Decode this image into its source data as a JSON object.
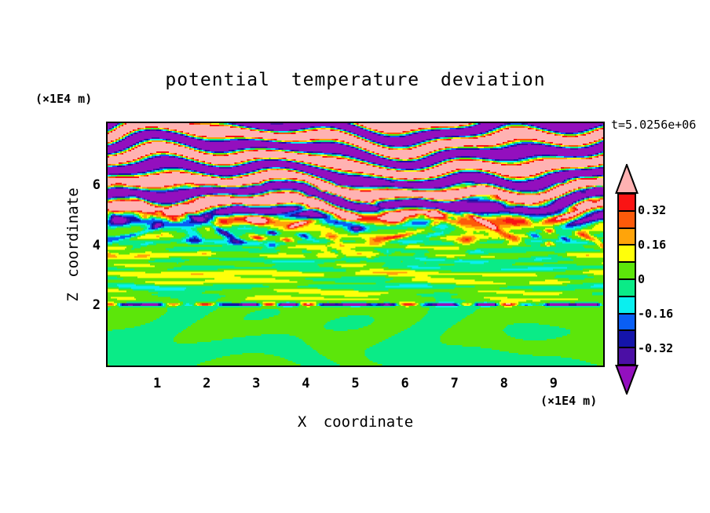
{
  "figure": {
    "background": "#FFFFFF",
    "frame_color": "#000000",
    "text_color": "#000000"
  },
  "chart_data": {
    "type": "heatmap",
    "title": "potential temperature deviation",
    "xlabel": "X coordinate",
    "ylabel": "Z coordinate",
    "x_unit_label": "(×1E4 m)",
    "z_unit_label": "(×1E4 m)",
    "time_annotation": "t=5.0256e+06",
    "x_range": [
      0,
      10
    ],
    "z_range": [
      0,
      8.06
    ],
    "x_major_ticks": [
      1,
      2,
      3,
      4,
      5,
      6,
      7,
      8,
      9
    ],
    "x_minor_step": 0.2,
    "z_major_ticks": [
      2,
      4,
      6,
      8
    ],
    "z_minor_step": 0.4,
    "z_labeled_ticks": [
      2,
      4,
      6
    ],
    "grid": false,
    "legend_position": "right-colorbar",
    "colorbar": {
      "max_abs_level": 0.4,
      "level_step": 0.08,
      "labels": [
        "0.32",
        "0.16",
        "0",
        "-0.16",
        "-0.32"
      ],
      "segment_colors_top_to_bottom": [
        "#FA1414",
        "#FC5A0A",
        "#FFA40A",
        "#FFFF0A",
        "#5CE60A",
        "#0AEB87",
        "#0AEFEF",
        "#0A5FF5",
        "#1414AA",
        "#4B0FA5"
      ],
      "segment_names_top_to_bottom": [
        "red",
        "orange-red",
        "orange",
        "yellow",
        "green",
        "spring-green",
        "cyan",
        "blue",
        "navy",
        "dark-violet"
      ],
      "over_arrow_color": "#FFB2B2",
      "over_arrow_name": "pink (> 0.4)",
      "under_arrow_color": "#930FBE",
      "under_arrow_name": "purple (< -0.4)"
    },
    "field_regions": [
      {
        "z_range": [
          0,
          2.0
        ],
        "description": "smooth overturning billows alternating between green (0..0.08) and spring-green (-0.08..0)"
      },
      {
        "z_range": [
          2.0,
          2.1
        ],
        "description": "thin mixing line, mostly navy/blue (-0.4..-0.16) with sparse red/pink warm spots"
      },
      {
        "z_range": [
          2.1,
          4.4
        ],
        "description": "green background with thin horizontal yellow and spring-green streaks"
      },
      {
        "z_range": [
          3.2,
          6.2
        ],
        "description": "scattered strong anomalies: red/pink cores with navy, blue and cyan rims"
      },
      {
        "z_range": [
          4.4,
          8.06
        ],
        "description": "large-amplitude wave layers saturating beyond ±0.4: pink (>0.4) and purple (<-0.4) bands separated by thin rainbow transition fringes"
      }
    ],
    "field_generator": {
      "bottom_mean": -0.012,
      "interior_mean": 0.03,
      "swirl_amp": 0.052,
      "line_z": 2.03,
      "line_width": 0.055,
      "line_mean": -0.3,
      "line_var_amp": 0.5,
      "streak_amp": 0.05,
      "streak_zone": [
        2.15,
        4.7
      ],
      "speck_amp": 0.38,
      "speck_zone": [
        3.2,
        6.6
      ],
      "band_amp": 0.78,
      "band_onset": [
        4.25,
        5.55
      ],
      "band_wavenumber_z": 7.7
    }
  }
}
